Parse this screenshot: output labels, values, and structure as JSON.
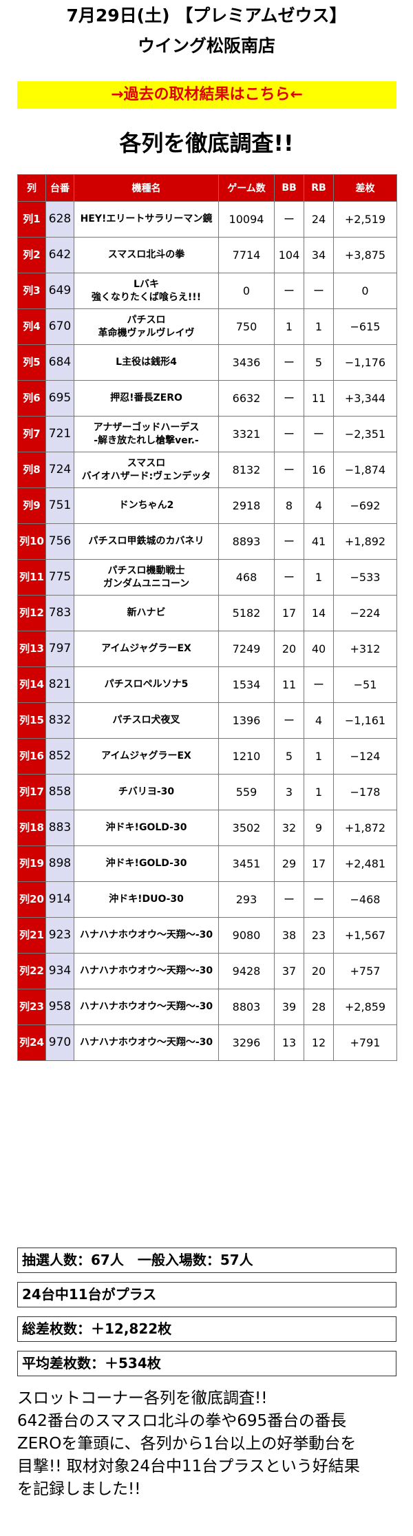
{
  "header": {
    "date_line": "7月29日(土) 【プレミアムゼウス】",
    "store": "ウイング松阪南店"
  },
  "banner": {
    "label": "→過去の取材結果はこちら←"
  },
  "heading": "各列を徹底調査!!",
  "table": {
    "columns": [
      "列",
      "台番",
      "機種名",
      "ゲーム数",
      "BB",
      "RB",
      "差枚"
    ],
    "rows": [
      {
        "row": "列1",
        "num": "628",
        "name1": "HEY!エリートサラリーマン鏡",
        "name2": "",
        "games": "10094",
        "bb": "ー",
        "rb": "24",
        "diff": "+2,519"
      },
      {
        "row": "列2",
        "num": "642",
        "name1": "スマスロ北斗の拳",
        "name2": "",
        "games": "7714",
        "bb": "104",
        "rb": "34",
        "diff": "+3,875"
      },
      {
        "row": "列3",
        "num": "649",
        "name1": "Lバキ",
        "name2": "強くなりたくば喰らえ!!!",
        "games": "0",
        "bb": "ー",
        "rb": "ー",
        "diff": "0"
      },
      {
        "row": "列4",
        "num": "670",
        "name1": "パチスロ",
        "name2": "革命機ヴァルヴレイヴ",
        "games": "750",
        "bb": "1",
        "rb": "1",
        "diff": "−615"
      },
      {
        "row": "列5",
        "num": "684",
        "name1": "L主役は銭形4",
        "name2": "",
        "games": "3436",
        "bb": "ー",
        "rb": "5",
        "diff": "−1,176"
      },
      {
        "row": "列6",
        "num": "695",
        "name1": "押忍!番長ZERO",
        "name2": "",
        "games": "6632",
        "bb": "ー",
        "rb": "11",
        "diff": "+3,344"
      },
      {
        "row": "列7",
        "num": "721",
        "name1": "アナザーゴッドハーデス",
        "name2": "-解き放たれし槍撃ver.-",
        "games": "3321",
        "bb": "ー",
        "rb": "ー",
        "diff": "−2,351"
      },
      {
        "row": "列8",
        "num": "724",
        "name1": "スマスロ",
        "name2": "バイオハザード:ヴェンデッタ",
        "games": "8132",
        "bb": "ー",
        "rb": "16",
        "diff": "−1,874"
      },
      {
        "row": "列9",
        "num": "751",
        "name1": "ドンちゃん2",
        "name2": "",
        "games": "2918",
        "bb": "8",
        "rb": "4",
        "diff": "−692"
      },
      {
        "row": "列10",
        "num": "756",
        "name1": "パチスロ甲鉄城のカバネリ",
        "name2": "",
        "games": "8893",
        "bb": "ー",
        "rb": "41",
        "diff": "+1,892"
      },
      {
        "row": "列11",
        "num": "775",
        "name1": "パチスロ機動戦士",
        "name2": "ガンダムユニコーン",
        "games": "468",
        "bb": "ー",
        "rb": "1",
        "diff": "−533"
      },
      {
        "row": "列12",
        "num": "783",
        "name1": "新ハナビ",
        "name2": "",
        "games": "5182",
        "bb": "17",
        "rb": "14",
        "diff": "−224"
      },
      {
        "row": "列13",
        "num": "797",
        "name1": "アイムジャグラーEX",
        "name2": "",
        "games": "7249",
        "bb": "20",
        "rb": "40",
        "diff": "+312"
      },
      {
        "row": "列14",
        "num": "821",
        "name1": "パチスロペルソナ5",
        "name2": "",
        "games": "1534",
        "bb": "11",
        "rb": "ー",
        "diff": "−51"
      },
      {
        "row": "列15",
        "num": "832",
        "name1": "パチスロ犬夜叉",
        "name2": "",
        "games": "1396",
        "bb": "ー",
        "rb": "4",
        "diff": "−1,161"
      },
      {
        "row": "列16",
        "num": "852",
        "name1": "アイムジャグラーEX",
        "name2": "",
        "games": "1210",
        "bb": "5",
        "rb": "1",
        "diff": "−124"
      },
      {
        "row": "列17",
        "num": "858",
        "name1": "チバリヨ-30",
        "name2": "",
        "games": "559",
        "bb": "3",
        "rb": "1",
        "diff": "−178"
      },
      {
        "row": "列18",
        "num": "883",
        "name1": "沖ドキ!GOLD-30",
        "name2": "",
        "games": "3502",
        "bb": "32",
        "rb": "9",
        "diff": "+1,872"
      },
      {
        "row": "列19",
        "num": "898",
        "name1": "沖ドキ!GOLD-30",
        "name2": "",
        "games": "3451",
        "bb": "29",
        "rb": "17",
        "diff": "+2,481"
      },
      {
        "row": "列20",
        "num": "914",
        "name1": "沖ドキ!DUO-30",
        "name2": "",
        "games": "293",
        "bb": "ー",
        "rb": "ー",
        "diff": "−468"
      },
      {
        "row": "列21",
        "num": "923",
        "name1": "ハナハナホウオウ〜天翔〜-30",
        "name2": "",
        "games": "9080",
        "bb": "38",
        "rb": "23",
        "diff": "+1,567"
      },
      {
        "row": "列22",
        "num": "934",
        "name1": "ハナハナホウオウ〜天翔〜-30",
        "name2": "",
        "games": "9428",
        "bb": "37",
        "rb": "20",
        "diff": "+757"
      },
      {
        "row": "列23",
        "num": "958",
        "name1": "ハナハナホウオウ〜天翔〜-30",
        "name2": "",
        "games": "8803",
        "bb": "39",
        "rb": "28",
        "diff": "+2,859"
      },
      {
        "row": "列24",
        "num": "970",
        "name1": "ハナハナホウオウ〜天翔〜-30",
        "name2": "",
        "games": "3296",
        "bb": "13",
        "rb": "12",
        "diff": "+791"
      }
    ]
  },
  "stats": {
    "lottery": "抽選人数：67人　一般入場数：57人",
    "plus": "24台中11台がプラス",
    "total": "総差枚数：＋12,822枚",
    "average": "平均差枚数：＋534枚"
  },
  "summary": {
    "line1": "スロットコーナー各列を徹底調査!!",
    "line2": "642番台のスマスロ北斗の拳や695番台の番長",
    "line3": "ZEROを筆頭に、各列から1台以上の好挙動台を",
    "line4": "目撃!! 取材対象24台中11台プラスという好結果",
    "line5": "を記録しました!!"
  },
  "colors": {
    "header_red": "#d00000",
    "banner_yellow": "#ffff00",
    "banner_text": "#e00000",
    "num_bg": "#dcdcf2"
  }
}
